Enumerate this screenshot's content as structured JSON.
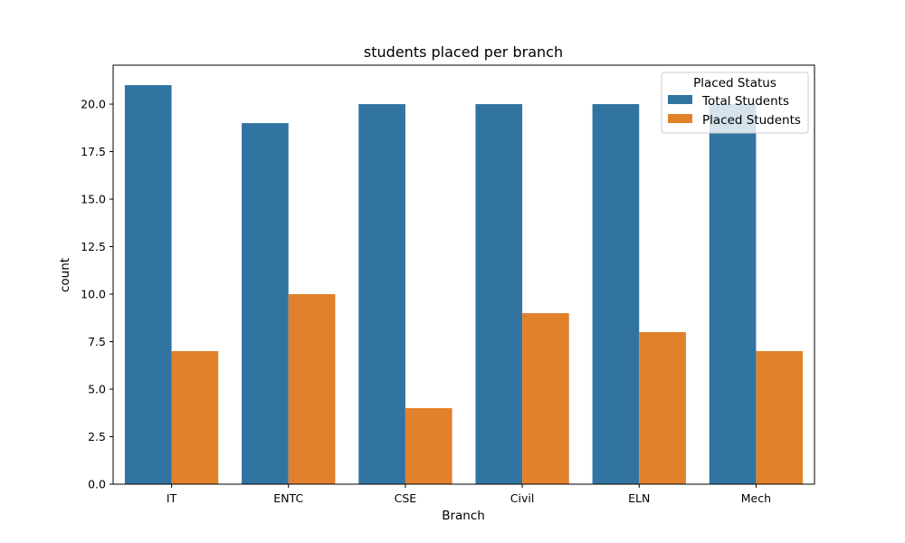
{
  "chart_data": {
    "type": "bar",
    "title": "students placed per branch",
    "xlabel": "Branch",
    "ylabel": "count",
    "categories": [
      "IT",
      "ENTC",
      "CSE",
      "Civil",
      "ELN",
      "Mech"
    ],
    "series": [
      {
        "name": "Total Students",
        "values": [
          21,
          19,
          20,
          20,
          20,
          20
        ],
        "color": "#3274a1"
      },
      {
        "name": "Placed Students",
        "values": [
          7,
          10,
          4,
          9,
          8,
          7
        ],
        "color": "#e1812c"
      }
    ],
    "ylim": [
      0,
      22.05
    ],
    "yticks": [
      "0.0",
      "2.5",
      "5.0",
      "7.5",
      "10.0",
      "12.5",
      "15.0",
      "17.5",
      "20.0"
    ],
    "grid": false,
    "legend": {
      "title": "Placed Status",
      "position": "top-right"
    }
  }
}
